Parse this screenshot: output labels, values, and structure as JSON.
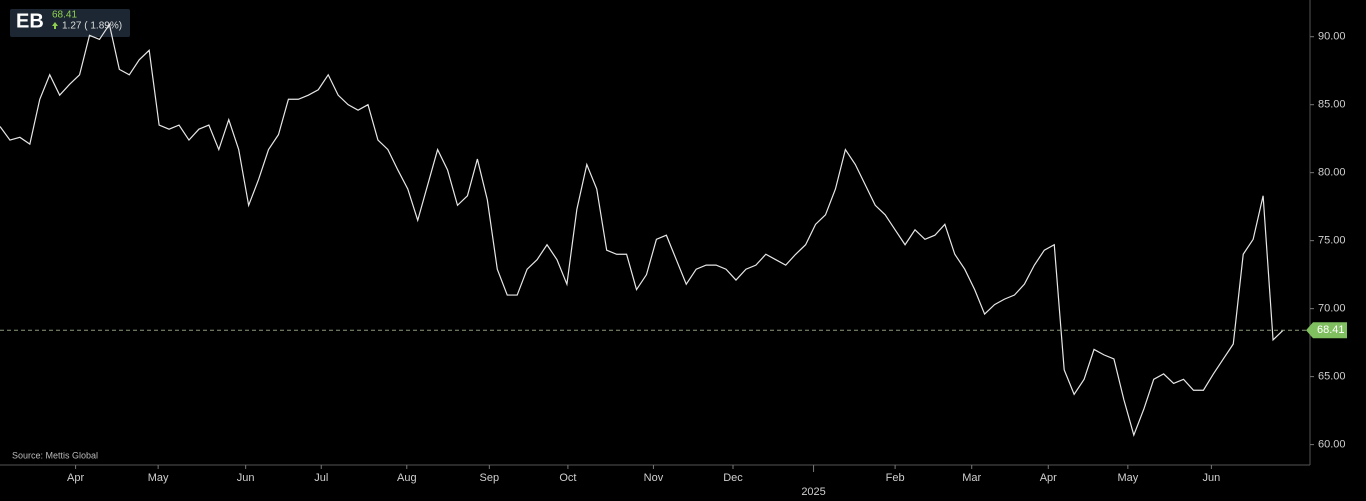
{
  "chart_data": {
    "type": "line",
    "ticker": "EB",
    "price": "68.41",
    "change": "1.27 ( 1.89%)",
    "source": "Source: Mettis Global",
    "color": "#e6e6e6",
    "values": [
      83.4,
      82.4,
      82.6,
      82.1,
      85.4,
      87.2,
      85.7,
      86.5,
      87.2,
      90.1,
      89.8,
      90.9,
      87.6,
      87.2,
      88.3,
      89.0,
      83.5,
      83.2,
      83.5,
      82.4,
      83.2,
      83.5,
      81.7,
      83.9,
      81.7,
      77.6,
      79.5,
      81.7,
      82.8,
      85.4,
      85.4,
      85.7,
      86.1,
      87.2,
      85.7,
      85.0,
      84.6,
      85.0,
      82.4,
      81.7,
      80.2,
      78.8,
      76.5,
      79.1,
      81.7,
      80.2,
      77.6,
      78.3,
      81.0,
      78.0,
      72.9,
      71.0,
      71.0,
      72.9,
      73.6,
      74.7,
      73.6,
      71.8,
      77.3,
      80.6,
      78.8,
      74.3,
      74.0,
      74.0,
      71.4,
      72.5,
      75.1,
      75.4,
      73.6,
      71.8,
      72.9,
      73.2,
      73.2,
      72.9,
      72.1,
      72.9,
      73.2,
      74.0,
      73.6,
      73.2,
      74.0,
      74.7,
      76.2,
      76.9,
      78.8,
      81.7,
      80.6,
      79.1,
      77.6,
      76.9,
      75.8,
      74.7,
      75.8,
      75.1,
      75.4,
      76.2,
      74.0,
      72.9,
      71.4,
      69.6,
      70.3,
      70.7,
      71.0,
      71.8,
      73.2,
      74.3,
      74.7,
      65.5,
      63.7,
      64.8,
      67.0,
      66.6,
      66.3,
      63.3,
      60.7,
      62.6,
      64.8,
      65.2,
      64.5,
      64.8,
      64.0,
      64.0,
      65.2,
      66.3,
      67.4,
      74.0,
      75.1,
      78.3,
      67.7,
      68.41
    ],
    "xlim": [
      0,
      129
    ],
    "xticks": [
      {
        "value": 7.6,
        "label": "Apr"
      },
      {
        "value": 15.9,
        "label": "May"
      },
      {
        "value": 24.7,
        "label": "Jun"
      },
      {
        "value": 32.3,
        "label": "Jul"
      },
      {
        "value": 40.9,
        "label": "Aug"
      },
      {
        "value": 49.2,
        "label": "Sep"
      },
      {
        "value": 57.1,
        "label": "Oct"
      },
      {
        "value": 65.7,
        "label": "Nov"
      },
      {
        "value": 73.7,
        "label": "Dec"
      },
      {
        "value": 81.8,
        "label": "2025"
      },
      {
        "value": 90,
        "label": "Feb"
      },
      {
        "value": 97.7,
        "label": "Mar"
      },
      {
        "value": 105.4,
        "label": "Apr"
      },
      {
        "value": 113.4,
        "label": "May"
      },
      {
        "value": 121.8,
        "label": "Jun"
      }
    ],
    "ylim": [
      58.5,
      92.7
    ],
    "yticks": [
      {
        "value": 60,
        "label": "60.00"
      },
      {
        "value": 65,
        "label": "65.00"
      },
      {
        "value": 70,
        "label": "70.00"
      },
      {
        "value": 75,
        "label": "75.00"
      },
      {
        "value": 80,
        "label": "80.00"
      },
      {
        "value": 85,
        "label": "85.00"
      },
      {
        "value": 90,
        "label": "90.00"
      }
    ],
    "last_value": {
      "value": 68.41,
      "label": "68.41"
    }
  }
}
